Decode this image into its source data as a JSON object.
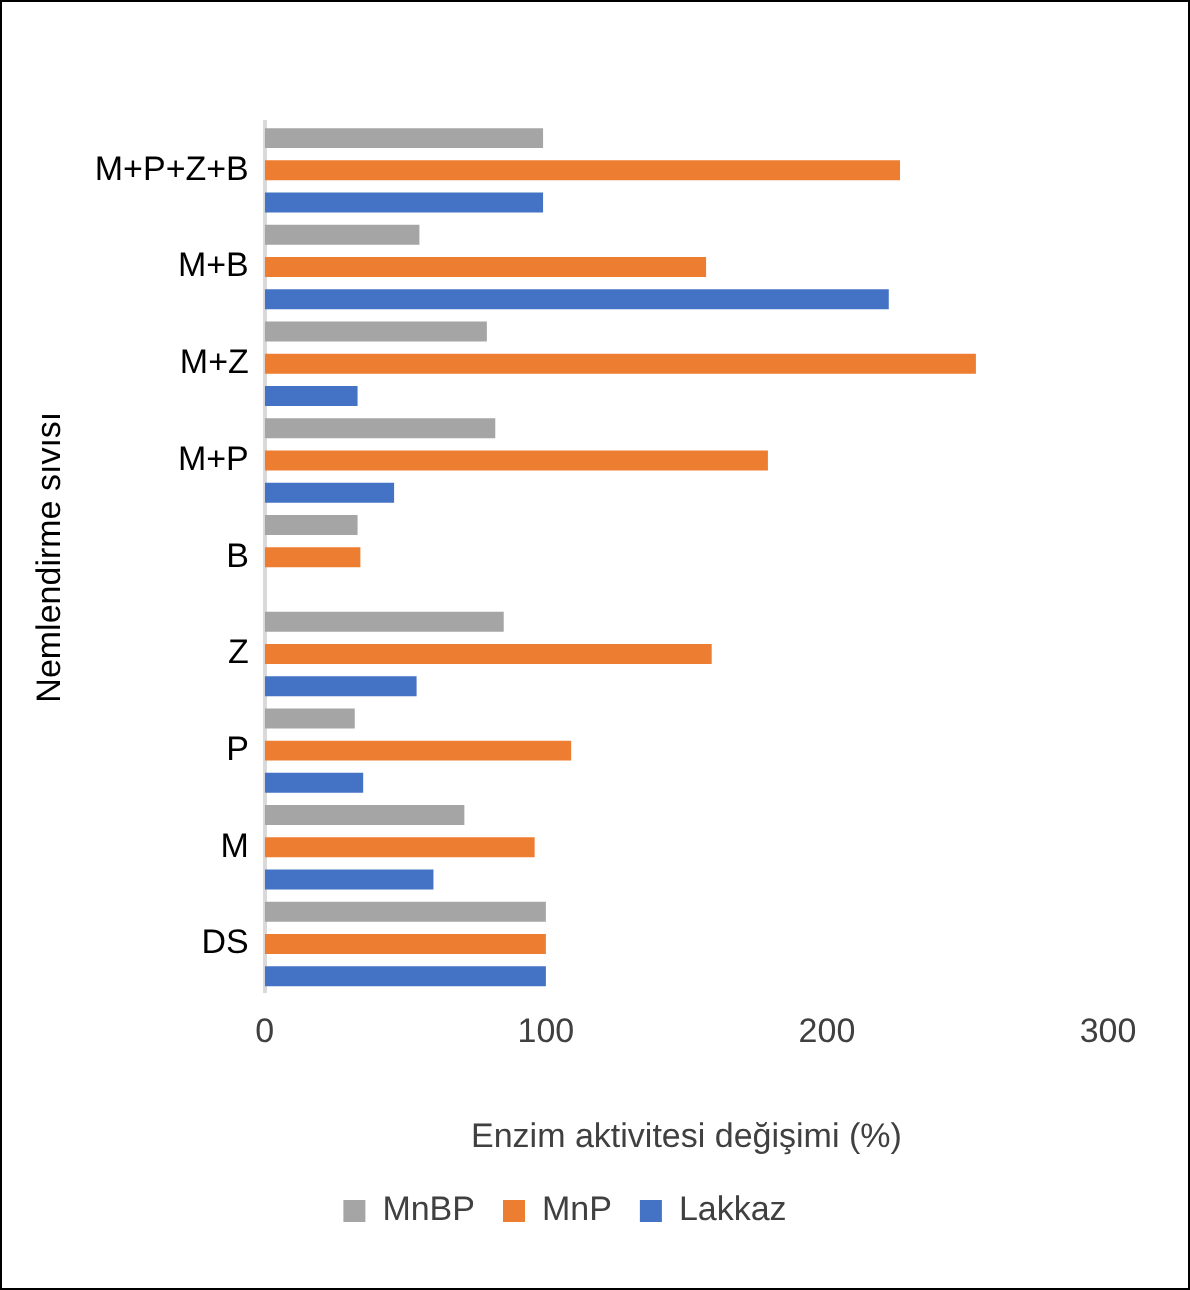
{
  "chart_data": {
    "type": "bar",
    "orientation": "horizontal",
    "xlabel": "Enzim aktivitesi değişimi (%)",
    "ylabel": "Nemlendirme sıvısı",
    "categories": [
      "M+P+Z+B",
      "M+B",
      "M+Z",
      "M+P",
      "B",
      "Z",
      "P",
      "M",
      "DS"
    ],
    "series": [
      {
        "name": "MnBP",
        "color": "#a5a5a5",
        "values": [
          99,
          55,
          79,
          82,
          33,
          85,
          32,
          71,
          100
        ]
      },
      {
        "name": "MnP",
        "color": "#ed7d31",
        "values": [
          226,
          157,
          253,
          179,
          34,
          159,
          109,
          96,
          100
        ]
      },
      {
        "name": "Lakkaz",
        "color": "#4472c4",
        "values": [
          99,
          222,
          33,
          46,
          null,
          54,
          35,
          60,
          100
        ]
      }
    ],
    "xlim": [
      0,
      300
    ],
    "xticks": [
      0,
      100,
      200,
      300
    ],
    "grid": false,
    "legend": "bottom"
  }
}
